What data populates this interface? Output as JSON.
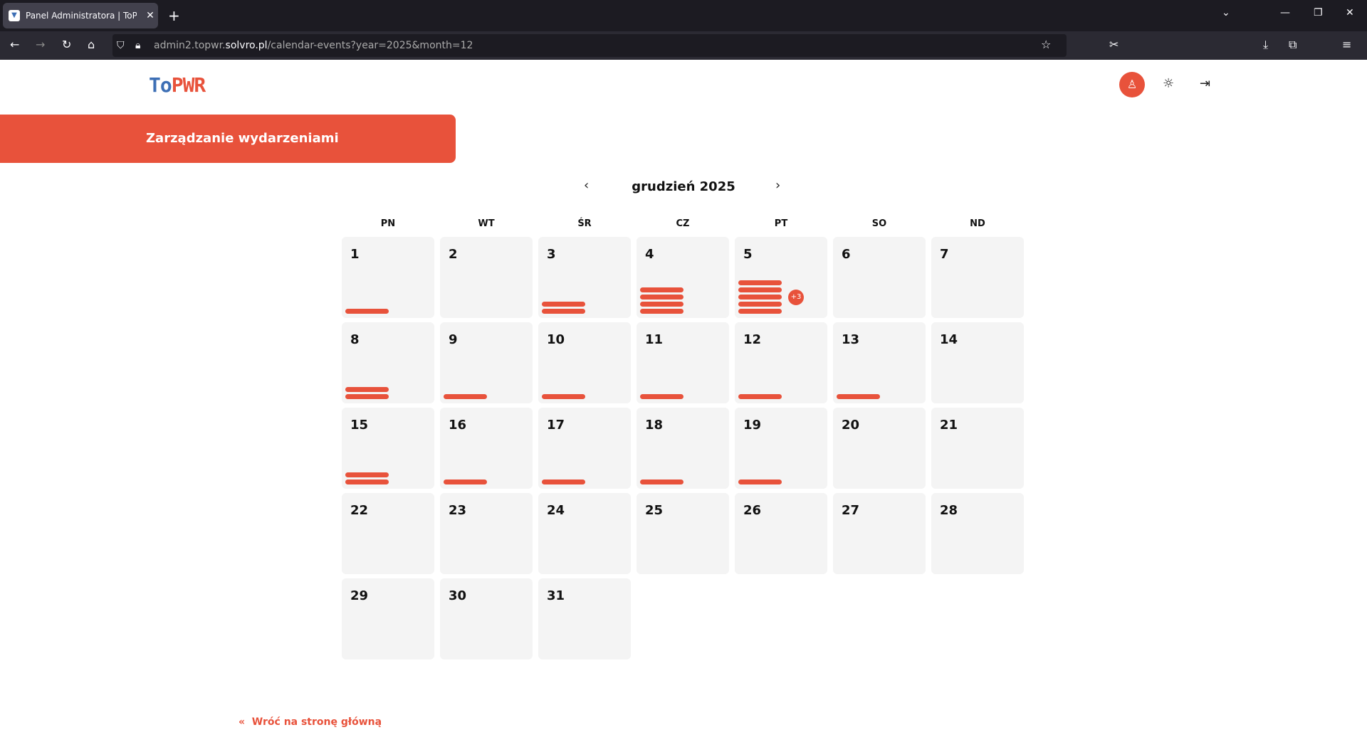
{
  "browser": {
    "tab_title": "Panel Administratora | ToPWR b",
    "url_prefix": "admin2.topwr.",
    "url_domain": "solvro.pl",
    "url_path": "/calendar-events?year=2025&month=12"
  },
  "header": {
    "logo_part1": "To",
    "logo_part2": "PWR"
  },
  "banner": {
    "title": "Zarządzanie wydarzeniami"
  },
  "calendar": {
    "month_title": "grudzień 2025",
    "prev": "‹",
    "next": "›",
    "weekdays": [
      "PN",
      "WT",
      "ŚR",
      "CZ",
      "PT",
      "SO",
      "ND"
    ],
    "days": [
      {
        "day": "1",
        "events": 1
      },
      {
        "day": "2",
        "events": 0
      },
      {
        "day": "3",
        "events": 2
      },
      {
        "day": "4",
        "events": 4
      },
      {
        "day": "5",
        "events": 5,
        "more": "+3"
      },
      {
        "day": "6",
        "events": 0
      },
      {
        "day": "7",
        "events": 0
      },
      {
        "day": "8",
        "events": 2
      },
      {
        "day": "9",
        "events": 1
      },
      {
        "day": "10",
        "events": 1
      },
      {
        "day": "11",
        "events": 1
      },
      {
        "day": "12",
        "events": 1
      },
      {
        "day": "13",
        "events": 1
      },
      {
        "day": "14",
        "events": 0
      },
      {
        "day": "15",
        "events": 2
      },
      {
        "day": "16",
        "events": 1
      },
      {
        "day": "17",
        "events": 1
      },
      {
        "day": "18",
        "events": 1
      },
      {
        "day": "19",
        "events": 1
      },
      {
        "day": "20",
        "events": 0
      },
      {
        "day": "21",
        "events": 0
      },
      {
        "day": "22",
        "events": 0
      },
      {
        "day": "23",
        "events": 0
      },
      {
        "day": "24",
        "events": 0
      },
      {
        "day": "25",
        "events": 0
      },
      {
        "day": "26",
        "events": 0
      },
      {
        "day": "27",
        "events": 0
      },
      {
        "day": "28",
        "events": 0
      },
      {
        "day": "29",
        "events": 0
      },
      {
        "day": "30",
        "events": 0
      },
      {
        "day": "31",
        "events": 0
      }
    ]
  },
  "footer": {
    "back_label": "Wróć na stronę główną"
  },
  "colors": {
    "accent": "#e8523b",
    "logo_blue": "#3d6fb5"
  }
}
